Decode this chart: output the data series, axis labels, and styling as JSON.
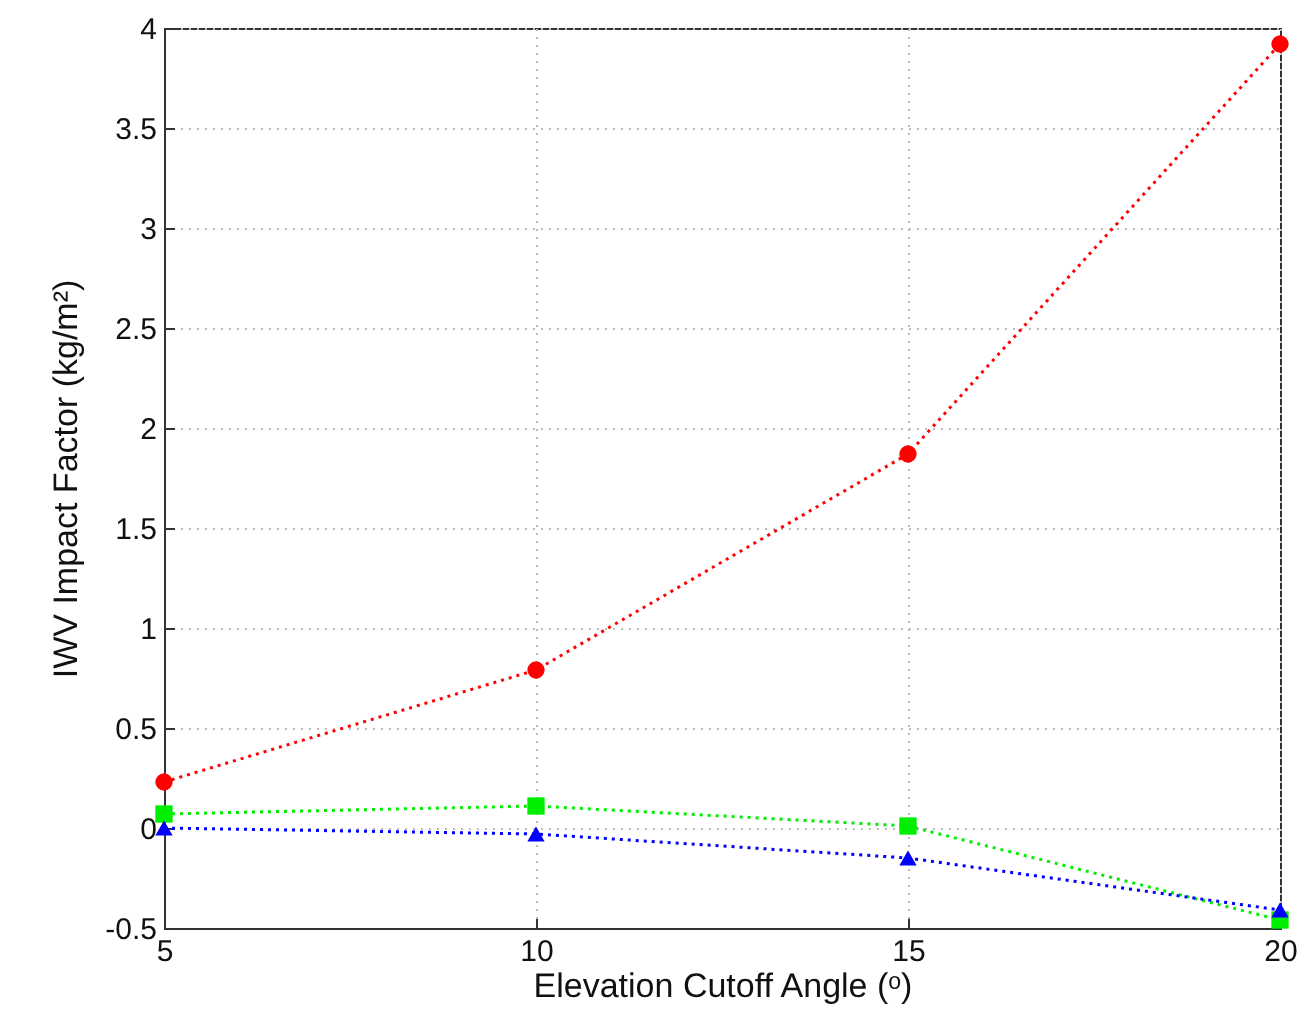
{
  "chart_data": {
    "type": "line",
    "xlabel": "Elevation Cutoff Angle (ᵒ)",
    "ylabel": "IWV Impact Factor (kg/m²)",
    "x": [
      5,
      10,
      15,
      20
    ],
    "series": [
      {
        "color": "#ff0000",
        "marker": "circle",
        "values": [
          0.23,
          0.79,
          1.87,
          3.92
        ]
      },
      {
        "color": "#00ee00",
        "marker": "square",
        "values": [
          0.07,
          0.11,
          0.01,
          -0.46
        ]
      },
      {
        "color": "#0000ff",
        "marker": "triangle",
        "values": [
          0.0,
          -0.03,
          -0.15,
          -0.41
        ]
      }
    ],
    "xlim": [
      5,
      20
    ],
    "xticks": [
      5,
      10,
      15,
      20
    ],
    "ylim": [
      -0.5,
      4
    ],
    "yticks": [
      -0.5,
      0,
      0.5,
      1,
      1.5,
      2,
      2.5,
      3,
      3.5,
      4
    ],
    "grid": true,
    "line_style": "dotted"
  }
}
